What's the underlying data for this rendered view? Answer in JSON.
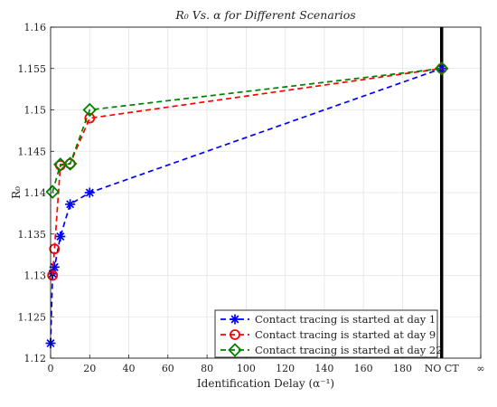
{
  "chart_data": {
    "type": "line",
    "title": "R₀ Vs. α for Different Scenarios",
    "xlabel": "Identification Delay (α⁻¹)",
    "ylabel": "R₀",
    "xlim": [
      0,
      220
    ],
    "ylim": [
      1.12,
      1.16
    ],
    "x_ticks": [
      0,
      20,
      40,
      60,
      80,
      100,
      120,
      140,
      160,
      180,
      200,
      220
    ],
    "x_tick_labels": [
      "0",
      "20",
      "40",
      "60",
      "80",
      "100",
      "120",
      "140",
      "160",
      "180",
      "NO CT",
      "∞"
    ],
    "y_ticks": [
      1.12,
      1.125,
      1.13,
      1.135,
      1.14,
      1.145,
      1.15,
      1.155,
      1.16
    ],
    "y_tick_labels": [
      "1.12",
      "1.125",
      "1.13",
      "1.135",
      "1.14",
      "1.145",
      "1.15",
      "1.155",
      "1.16"
    ],
    "grid": true,
    "legend_position": "bottom-right",
    "reference_line": {
      "x": 200,
      "color": "#000000"
    },
    "series": [
      {
        "name": "Contact tracing is started at day 1",
        "color": "#0000ff",
        "marker": "asterisk",
        "x": [
          0,
          1,
          2,
          5,
          10,
          20,
          200
        ],
        "y": [
          1.1218,
          1.1302,
          1.131,
          1.1347,
          1.1386,
          1.14,
          1.155
        ]
      },
      {
        "name": "Contact tracing is started at day 9",
        "color": "#ff0000",
        "marker": "circle",
        "x": [
          1,
          2,
          5,
          10,
          20,
          200
        ],
        "y": [
          1.13,
          1.1332,
          1.1433,
          1.1435,
          1.149,
          1.155
        ]
      },
      {
        "name": "Contact tracing is started at day 22",
        "color": "#008000",
        "marker": "diamond",
        "x": [
          1,
          5,
          10,
          20,
          200
        ],
        "y": [
          1.1401,
          1.1434,
          1.1435,
          1.15,
          1.155
        ]
      }
    ]
  }
}
